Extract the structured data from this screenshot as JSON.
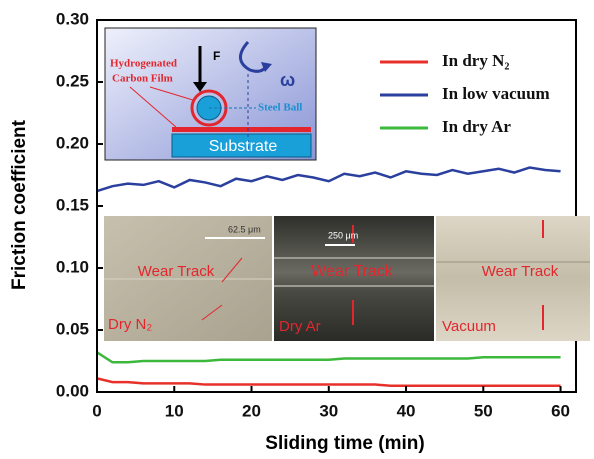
{
  "chart_data": {
    "type": "line",
    "xlabel": "Sliding time (min)",
    "ylabel": "Friction coefficient",
    "x": [
      0,
      2,
      4,
      6,
      8,
      10,
      12,
      14,
      16,
      18,
      20,
      22,
      24,
      26,
      28,
      30,
      32,
      34,
      36,
      38,
      40,
      42,
      44,
      46,
      48,
      50,
      52,
      54,
      56,
      58,
      60
    ],
    "series": [
      {
        "name": "In dry N₂",
        "color": "#e8302a",
        "values": [
          0.011,
          0.008,
          0.008,
          0.007,
          0.007,
          0.007,
          0.007,
          0.006,
          0.006,
          0.006,
          0.006,
          0.006,
          0.006,
          0.006,
          0.006,
          0.006,
          0.006,
          0.006,
          0.006,
          0.005,
          0.005,
          0.005,
          0.005,
          0.005,
          0.005,
          0.005,
          0.005,
          0.005,
          0.005,
          0.005,
          0.005
        ]
      },
      {
        "name": "In low vacuum",
        "color": "#2a3f9e",
        "values": [
          0.162,
          0.166,
          0.168,
          0.167,
          0.17,
          0.165,
          0.171,
          0.169,
          0.166,
          0.172,
          0.17,
          0.174,
          0.171,
          0.175,
          0.173,
          0.17,
          0.176,
          0.174,
          0.177,
          0.173,
          0.178,
          0.176,
          0.175,
          0.179,
          0.176,
          0.178,
          0.18,
          0.177,
          0.181,
          0.179,
          0.178
        ]
      },
      {
        "name": "In dry Ar",
        "color": "#3cb83c",
        "values": [
          0.032,
          0.024,
          0.024,
          0.025,
          0.025,
          0.025,
          0.025,
          0.025,
          0.026,
          0.026,
          0.026,
          0.026,
          0.026,
          0.026,
          0.026,
          0.026,
          0.027,
          0.027,
          0.027,
          0.027,
          0.027,
          0.027,
          0.027,
          0.027,
          0.027,
          0.028,
          0.028,
          0.028,
          0.028,
          0.028,
          0.028
        ]
      }
    ],
    "xlim": [
      0,
      62
    ],
    "xticks": [
      0,
      10,
      20,
      30,
      40,
      50,
      60
    ],
    "ylim": [
      0,
      0.3
    ],
    "yticks": [
      {
        "value": 0,
        "label": "0.00"
      },
      0.05,
      {
        "value": 0.1,
        "label": "0.10"
      },
      0.15,
      {
        "value": 0.2,
        "label": "0.20"
      },
      0.25,
      {
        "value": 0.3,
        "label": "0.30"
      }
    ],
    "legend": "upper right",
    "schematic": {
      "force": "F",
      "rotation": "ω",
      "film": [
        "Hydrogenated",
        "Carbon Film"
      ],
      "ball": "Steel Ball",
      "substrate": "Substrate"
    },
    "micrographs": [
      {
        "label": "Dry N₂",
        "scale": "62.5 μm",
        "track": "Wear Track"
      },
      {
        "label": "Dry Ar",
        "scale": "250 μm",
        "track": "Wear Track"
      },
      {
        "label": "Vacuum",
        "track": "Wear Track"
      }
    ]
  }
}
